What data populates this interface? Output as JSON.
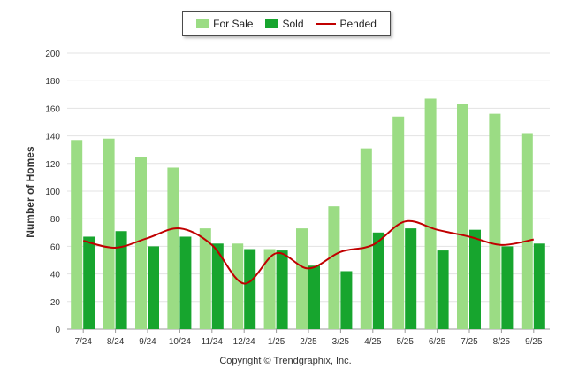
{
  "chart_data": {
    "type": "bar",
    "title": "",
    "ylabel": "Number of Homes",
    "xlabel": "",
    "ylim": [
      0,
      200
    ],
    "yticks": [
      0,
      20,
      40,
      60,
      80,
      100,
      120,
      140,
      160,
      180,
      200
    ],
    "grid": true,
    "legend_position": "top-center",
    "categories": [
      "7/24",
      "8/24",
      "9/24",
      "10/24",
      "11/24",
      "12/24",
      "1/25",
      "2/25",
      "3/25",
      "4/25",
      "5/25",
      "6/25",
      "7/25",
      "8/25",
      "9/25"
    ],
    "series": [
      {
        "name": "For Sale",
        "kind": "bar",
        "color": "#9bdc84",
        "values": [
          137,
          138,
          125,
          117,
          73,
          62,
          58,
          73,
          89,
          131,
          154,
          167,
          163,
          156,
          142
        ]
      },
      {
        "name": "Sold",
        "kind": "bar",
        "color": "#17a52e",
        "values": [
          67,
          71,
          60,
          67,
          62,
          58,
          57,
          46,
          42,
          70,
          73,
          57,
          72,
          60,
          62
        ]
      },
      {
        "name": "Pended",
        "kind": "line",
        "color": "#c00000",
        "values": [
          64,
          59,
          66,
          73,
          61,
          33,
          55,
          44,
          56,
          61,
          78,
          72,
          67,
          61,
          65
        ]
      }
    ]
  },
  "footer": {
    "copyright": "Copyright © Trendgraphix, Inc."
  }
}
